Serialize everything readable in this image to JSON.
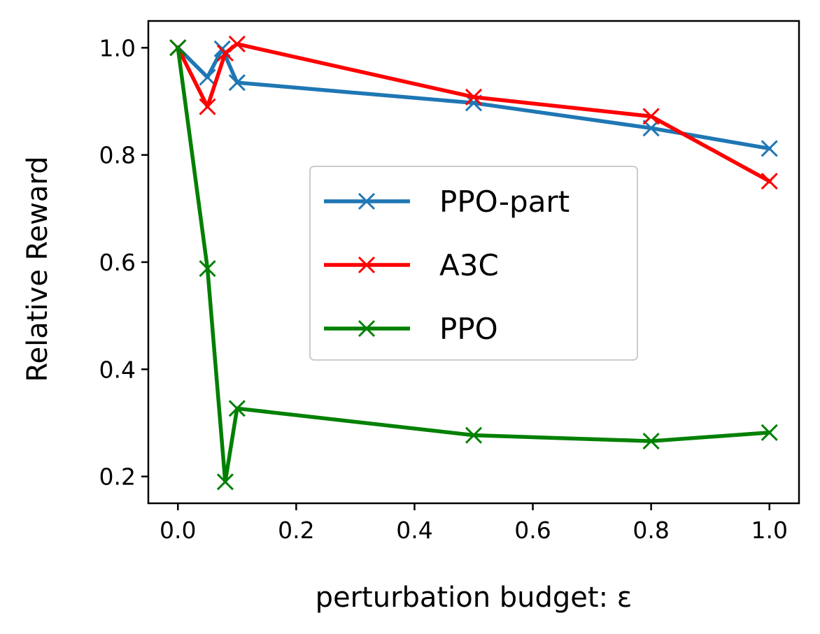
{
  "chart_data": {
    "type": "line",
    "title": "",
    "xlabel": "perturbation budget: ε",
    "ylabel": "Relative Reward",
    "xlim": [
      -0.05,
      1.05
    ],
    "ylim": [
      0.15,
      1.05
    ],
    "xticks": [
      0.0,
      0.2,
      0.4,
      0.6,
      0.8,
      1.0
    ],
    "xtick_labels": [
      "0.0",
      "0.2",
      "0.4",
      "0.6",
      "0.8",
      "1.0"
    ],
    "yticks": [
      0.2,
      0.4,
      0.6,
      0.8,
      1.0
    ],
    "ytick_labels": [
      "0.2",
      "0.4",
      "0.6",
      "0.8",
      "1.0"
    ],
    "grid": false,
    "legend_position": "center",
    "marker": "x",
    "series": [
      {
        "name": "PPO-part",
        "color": "#1f77b4",
        "x": [
          0.0,
          0.05,
          0.075,
          0.1,
          0.5,
          0.8,
          1.0
        ],
        "y": [
          1.0,
          0.945,
          0.998,
          0.935,
          0.897,
          0.85,
          0.812
        ]
      },
      {
        "name": "A3C",
        "color": "#ff0000",
        "x": [
          0.0,
          0.05,
          0.08,
          0.1,
          0.5,
          0.8,
          1.0
        ],
        "y": [
          1.0,
          0.89,
          0.99,
          1.007,
          0.908,
          0.872,
          0.751
        ]
      },
      {
        "name": "PPO",
        "color": "#008000",
        "x": [
          0.0,
          0.05,
          0.08,
          0.1,
          0.5,
          0.8,
          1.0
        ],
        "y": [
          1.0,
          0.588,
          0.19,
          0.327,
          0.277,
          0.266,
          0.282
        ]
      }
    ]
  }
}
